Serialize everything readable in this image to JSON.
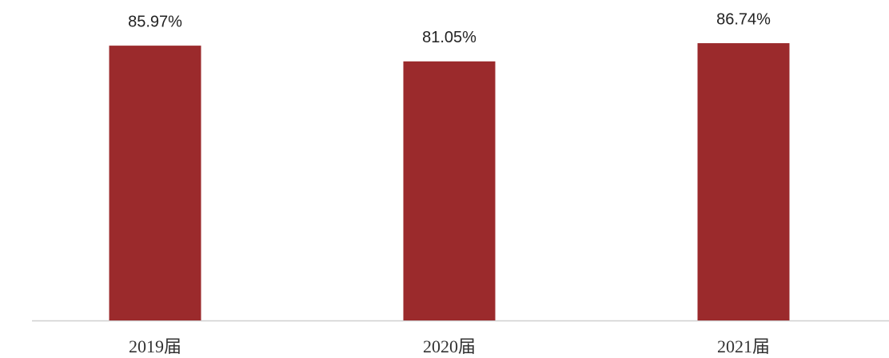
{
  "chart_data": {
    "type": "bar",
    "categories": [
      "2019届",
      "2020届",
      "2021届"
    ],
    "values": [
      85.97,
      81.05,
      86.74
    ],
    "value_labels": [
      "85.97%",
      "81.05%",
      "86.74%"
    ],
    "color": "#9b2a2c",
    "ylim": [
      0,
      100
    ]
  }
}
